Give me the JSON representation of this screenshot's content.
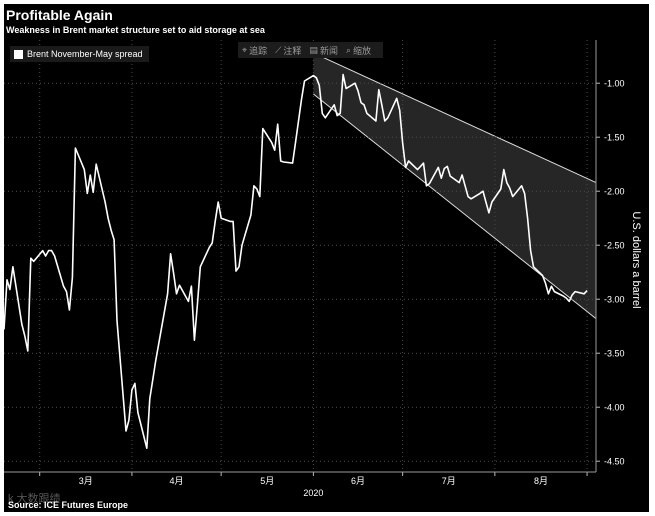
{
  "header": {
    "title": "Profitable Again",
    "subtitle": "Weakness in Brent market structure set to aid storage at sea"
  },
  "legend": {
    "label": "Brent November-May spread"
  },
  "toolbar": {
    "items": [
      {
        "icon": "crosshair-icon",
        "glyph": "⌖",
        "label": "追踪"
      },
      {
        "icon": "pencil-icon",
        "glyph": "⟋",
        "label": "注释"
      },
      {
        "icon": "news-icon",
        "glyph": "▤",
        "label": "新闻"
      },
      {
        "icon": "zoom-icon",
        "glyph": "⌕",
        "label": "缩放"
      }
    ]
  },
  "footer": {
    "source": "Source: ICE Futures Europe",
    "watermark": "k  大数跟绩"
  },
  "chart_data": {
    "type": "line",
    "title": "Profitable Again",
    "subtitle": "Weakness in Brent market structure set to aid storage at sea",
    "ylabel": "U.S. dollars a barrel",
    "xlabel": "",
    "x_axis": {
      "tick_labels": [
        "3月",
        "4月",
        "5月",
        "6月",
        "7月",
        "8月"
      ],
      "year_label": "2020",
      "range": [
        "2020-02-18",
        "2020-09-04"
      ]
    },
    "ylim": [
      -4.6,
      -0.6
    ],
    "y_ticks": [
      -1.0,
      -1.5,
      -2.0,
      -2.5,
      -3.0,
      -3.5,
      -4.0,
      -4.5
    ],
    "y_tick_labels": [
      "-1.00",
      "-1.50",
      "-2.00",
      "-2.50",
      "-3.00",
      "-3.50",
      "-4.00",
      "-4.50"
    ],
    "grid": true,
    "legend_position": "top-left",
    "colors": {
      "line": "#ffffff",
      "background": "#000000",
      "band_fill": "#2d2d2d",
      "grid": "#4a4a4a"
    },
    "series": [
      {
        "name": "Brent November-May spread",
        "x": [
          "2020-02-18",
          "2020-02-19",
          "2020-02-20",
          "2020-02-21",
          "2020-02-24",
          "2020-02-25",
          "2020-02-26",
          "2020-02-27",
          "2020-02-28",
          "2020-03-02",
          "2020-03-03",
          "2020-03-04",
          "2020-03-05",
          "2020-03-06",
          "2020-03-09",
          "2020-03-10",
          "2020-03-11",
          "2020-03-12",
          "2020-03-13",
          "2020-03-16",
          "2020-03-17",
          "2020-03-18",
          "2020-03-19",
          "2020-03-20",
          "2020-03-23",
          "2020-03-24",
          "2020-03-25",
          "2020-03-26",
          "2020-03-27",
          "2020-03-30",
          "2020-03-31",
          "2020-04-01",
          "2020-04-02",
          "2020-04-03",
          "2020-04-06",
          "2020-04-07",
          "2020-04-08",
          "2020-04-09",
          "2020-04-13",
          "2020-04-14",
          "2020-04-15",
          "2020-04-16",
          "2020-04-17",
          "2020-04-20",
          "2020-04-21",
          "2020-04-22",
          "2020-04-23",
          "2020-04-24",
          "2020-04-27",
          "2020-04-28",
          "2020-04-29",
          "2020-04-30",
          "2020-05-01",
          "2020-05-04",
          "2020-05-05",
          "2020-05-06",
          "2020-05-07",
          "2020-05-08",
          "2020-05-11",
          "2020-05-12",
          "2020-05-13",
          "2020-05-14",
          "2020-05-15",
          "2020-05-18",
          "2020-05-19",
          "2020-05-20",
          "2020-05-21",
          "2020-05-22",
          "2020-05-25",
          "2020-05-26",
          "2020-05-27",
          "2020-05-28",
          "2020-05-29",
          "2020-06-01",
          "2020-06-02",
          "2020-06-03",
          "2020-06-04",
          "2020-06-05",
          "2020-06-08",
          "2020-06-09",
          "2020-06-10",
          "2020-06-11",
          "2020-06-12",
          "2020-06-15",
          "2020-06-16",
          "2020-06-17",
          "2020-06-18",
          "2020-06-19",
          "2020-06-22",
          "2020-06-23",
          "2020-06-24",
          "2020-06-25",
          "2020-06-26",
          "2020-06-29",
          "2020-06-30",
          "2020-07-01",
          "2020-07-02",
          "2020-07-03",
          "2020-07-06",
          "2020-07-07",
          "2020-07-08",
          "2020-07-09",
          "2020-07-10",
          "2020-07-13",
          "2020-07-14",
          "2020-07-15",
          "2020-07-16",
          "2020-07-17",
          "2020-07-20",
          "2020-07-21",
          "2020-07-22",
          "2020-07-23",
          "2020-07-24",
          "2020-07-27",
          "2020-07-28",
          "2020-07-29",
          "2020-07-30",
          "2020-07-31",
          "2020-08-03",
          "2020-08-04",
          "2020-08-05",
          "2020-08-06",
          "2020-08-07",
          "2020-08-10",
          "2020-08-11",
          "2020-08-12",
          "2020-08-13",
          "2020-08-14",
          "2020-08-17",
          "2020-08-18",
          "2020-08-19",
          "2020-08-20",
          "2020-08-21",
          "2020-08-24",
          "2020-08-25",
          "2020-08-26",
          "2020-08-27",
          "2020-08-28",
          "2020-08-31",
          "2020-09-01"
        ],
        "values": [
          -3.28,
          -2.82,
          -2.91,
          -2.7,
          -3.23,
          -3.34,
          -3.48,
          -2.62,
          -2.65,
          -2.55,
          -2.6,
          -2.55,
          -2.55,
          -2.6,
          -2.88,
          -2.93,
          -3.1,
          -2.8,
          -1.6,
          -1.8,
          -2.02,
          -1.85,
          -2.01,
          -1.75,
          -2.1,
          -2.25,
          -2.36,
          -2.45,
          -3.2,
          -4.22,
          -4.12,
          -3.84,
          -3.78,
          -4.05,
          -4.38,
          -3.92,
          -3.75,
          -3.57,
          -2.95,
          -2.58,
          -2.76,
          -2.95,
          -2.87,
          -3.02,
          -2.88,
          -3.38,
          -3.05,
          -2.7,
          -2.52,
          -2.48,
          -2.28,
          -2.1,
          -2.25,
          -2.28,
          -2.28,
          -2.74,
          -2.7,
          -2.5,
          -2.22,
          -1.95,
          -1.98,
          -2.05,
          -1.42,
          -1.55,
          -1.62,
          -1.38,
          -1.72,
          -1.73,
          -1.74,
          -1.55,
          -1.35,
          -1.15,
          -0.98,
          -0.93,
          -0.95,
          -1.02,
          -1.28,
          -1.32,
          -1.2,
          -1.3,
          -1.28,
          -0.92,
          -1.05,
          -1.0,
          -1.07,
          -1.18,
          -1.2,
          -1.28,
          -1.35,
          -1.06,
          -1.2,
          -1.35,
          -1.32,
          -1.14,
          -1.25,
          -1.55,
          -1.78,
          -1.72,
          -1.8,
          -1.77,
          -1.74,
          -1.95,
          -1.93,
          -1.78,
          -1.88,
          -1.79,
          -1.77,
          -1.86,
          -1.92,
          -1.85,
          -1.95,
          -2.05,
          -2.07,
          -2.02,
          -2.0,
          -2.1,
          -2.2,
          -2.1,
          -1.98,
          -1.8,
          -1.92,
          -1.97,
          -2.05,
          -1.95,
          -2.02,
          -2.25,
          -2.55,
          -2.7,
          -2.78,
          -2.85,
          -2.95,
          -2.88,
          -2.93,
          -2.97,
          -2.99,
          -3.02,
          -2.96,
          -2.93,
          -2.95,
          -2.92
        ]
      }
    ],
    "annotations": [
      {
        "type": "channel",
        "upper": {
          "from": {
            "x": "2020-06-01",
            "y": -0.72
          },
          "to": {
            "x": "2020-09-04",
            "y": -1.92
          }
        },
        "lower": {
          "from": {
            "x": "2020-06-01",
            "y": -1.1
          },
          "to": {
            "x": "2020-09-04",
            "y": -3.18
          }
        }
      }
    ]
  }
}
